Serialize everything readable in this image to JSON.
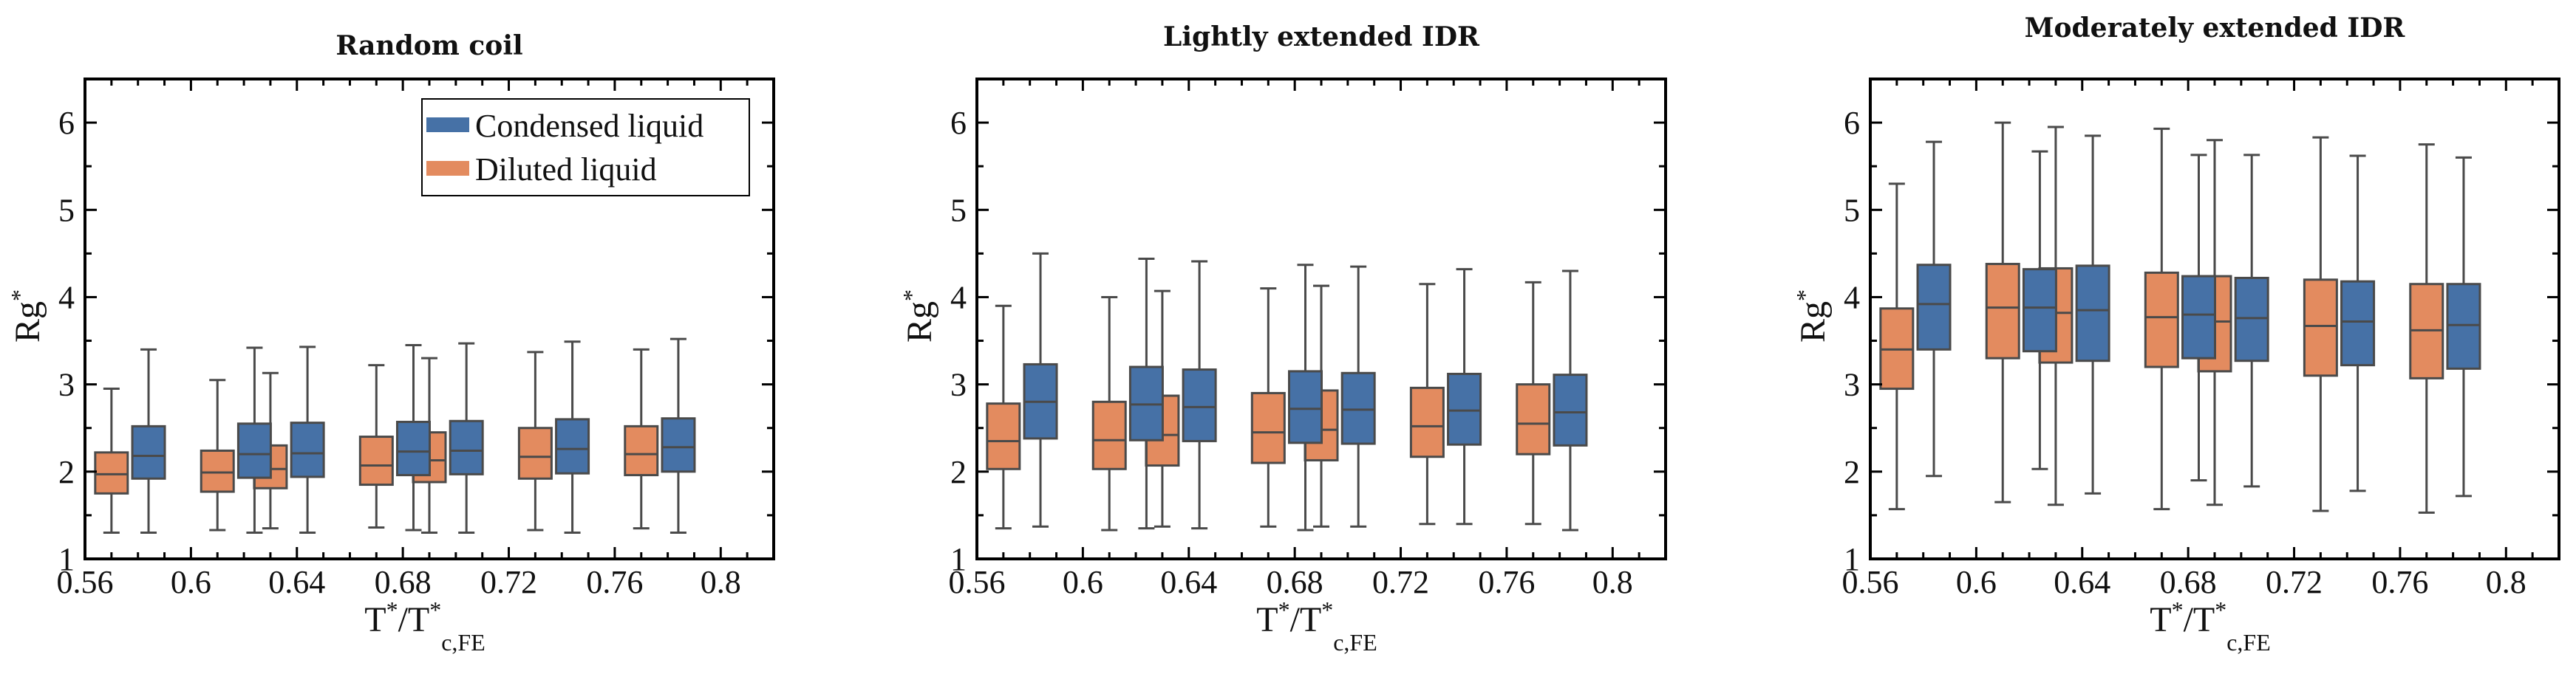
{
  "figure": {
    "ylabel": "Rg",
    "ylabel_sup": "*",
    "xlabel_T": "T",
    "xlabel_sup": "*",
    "xlabel_slash": "/T",
    "xlabel_sub": "c,FE"
  },
  "legend": {
    "condensed": "Condensed liquid",
    "diluted": "Diluted liquid"
  },
  "colors": {
    "condensed": "#4671a6",
    "diluted": "#e38b5f",
    "whisker": "#4a4a4a"
  },
  "chart_data": [
    {
      "type": "boxplot",
      "title": "Random coil",
      "xlim": [
        0.56,
        0.82
      ],
      "ylim": [
        1,
        6.5
      ],
      "xticks": [
        0.56,
        0.6,
        0.64,
        0.68,
        0.72,
        0.76,
        0.8
      ],
      "xtick_labels": [
        "0.56",
        "0.6",
        "0.64",
        "0.68",
        "0.72",
        "0.76",
        "0.8"
      ],
      "yticks": [
        1,
        2,
        3,
        4,
        5,
        6
      ],
      "ytick_labels": [
        "1",
        "2",
        "3",
        "4",
        "5",
        "6"
      ],
      "series": [
        {
          "name": "Diluted liquid",
          "x": [
            0.57,
            0.61,
            0.63,
            0.67,
            0.69,
            0.73,
            0.77
          ],
          "boxes": [
            {
              "min": 1.3,
              "q1": 1.75,
              "median": 1.97,
              "q3": 2.22,
              "max": 2.95
            },
            {
              "min": 1.33,
              "q1": 1.77,
              "median": 1.99,
              "q3": 2.24,
              "max": 3.05
            },
            {
              "min": 1.35,
              "q1": 1.81,
              "median": 2.03,
              "q3": 2.3,
              "max": 3.13
            },
            {
              "min": 1.36,
              "q1": 1.85,
              "median": 2.07,
              "q3": 2.4,
              "max": 3.22
            },
            {
              "min": 1.3,
              "q1": 1.88,
              "median": 2.13,
              "q3": 2.45,
              "max": 3.3
            },
            {
              "min": 1.33,
              "q1": 1.92,
              "median": 2.17,
              "q3": 2.5,
              "max": 3.37
            },
            {
              "min": 1.35,
              "q1": 1.96,
              "median": 2.2,
              "q3": 2.52,
              "max": 3.4
            }
          ]
        },
        {
          "name": "Condensed liquid",
          "x": [
            0.584,
            0.624,
            0.644,
            0.684,
            0.704,
            0.744,
            0.784
          ],
          "boxes": [
            {
              "min": 1.3,
              "q1": 1.92,
              "median": 2.18,
              "q3": 2.52,
              "max": 3.4
            },
            {
              "min": 1.3,
              "q1": 1.93,
              "median": 2.2,
              "q3": 2.55,
              "max": 3.42
            },
            {
              "min": 1.3,
              "q1": 1.94,
              "median": 2.21,
              "q3": 2.56,
              "max": 3.43
            },
            {
              "min": 1.33,
              "q1": 1.96,
              "median": 2.23,
              "q3": 2.57,
              "max": 3.45
            },
            {
              "min": 1.3,
              "q1": 1.97,
              "median": 2.24,
              "q3": 2.58,
              "max": 3.47
            },
            {
              "min": 1.3,
              "q1": 1.98,
              "median": 2.26,
              "q3": 2.6,
              "max": 3.49
            },
            {
              "min": 1.3,
              "q1": 2.0,
              "median": 2.28,
              "q3": 2.61,
              "max": 3.52
            }
          ]
        }
      ],
      "legend_position": "top-right"
    },
    {
      "type": "boxplot",
      "title": "Lightly extended IDR",
      "xlim": [
        0.56,
        0.82
      ],
      "ylim": [
        1,
        6.5
      ],
      "xticks": [
        0.56,
        0.6,
        0.64,
        0.68,
        0.72,
        0.76,
        0.8
      ],
      "xtick_labels": [
        "0.56",
        "0.6",
        "0.64",
        "0.68",
        "0.72",
        "0.76",
        "0.8"
      ],
      "yticks": [
        1,
        2,
        3,
        4,
        5,
        6
      ],
      "ytick_labels": [
        "1",
        "2",
        "3",
        "4",
        "5",
        "6"
      ],
      "series": [
        {
          "name": "Diluted liquid",
          "x": [
            0.57,
            0.61,
            0.63,
            0.67,
            0.69,
            0.73,
            0.77
          ],
          "boxes": [
            {
              "min": 1.35,
              "q1": 2.03,
              "median": 2.35,
              "q3": 2.78,
              "max": 3.9
            },
            {
              "min": 1.33,
              "q1": 2.03,
              "median": 2.36,
              "q3": 2.8,
              "max": 4.0
            },
            {
              "min": 1.37,
              "q1": 2.07,
              "median": 2.42,
              "q3": 2.87,
              "max": 4.07
            },
            {
              "min": 1.37,
              "q1": 2.1,
              "median": 2.45,
              "q3": 2.9,
              "max": 4.1
            },
            {
              "min": 1.37,
              "q1": 2.13,
              "median": 2.48,
              "q3": 2.93,
              "max": 4.13
            },
            {
              "min": 1.4,
              "q1": 2.17,
              "median": 2.52,
              "q3": 2.96,
              "max": 4.15
            },
            {
              "min": 1.4,
              "q1": 2.2,
              "median": 2.55,
              "q3": 3.0,
              "max": 4.17
            }
          ]
        },
        {
          "name": "Condensed liquid",
          "x": [
            0.584,
            0.624,
            0.644,
            0.684,
            0.704,
            0.744,
            0.784
          ],
          "boxes": [
            {
              "min": 1.37,
              "q1": 2.38,
              "median": 2.8,
              "q3": 3.23,
              "max": 4.5
            },
            {
              "min": 1.35,
              "q1": 2.36,
              "median": 2.77,
              "q3": 3.2,
              "max": 4.44
            },
            {
              "min": 1.35,
              "q1": 2.35,
              "median": 2.74,
              "q3": 3.17,
              "max": 4.41
            },
            {
              "min": 1.33,
              "q1": 2.33,
              "median": 2.72,
              "q3": 3.15,
              "max": 4.37
            },
            {
              "min": 1.37,
              "q1": 2.32,
              "median": 2.71,
              "q3": 3.13,
              "max": 4.35
            },
            {
              "min": 1.4,
              "q1": 2.31,
              "median": 2.7,
              "q3": 3.12,
              "max": 4.32
            },
            {
              "min": 1.33,
              "q1": 2.3,
              "median": 2.68,
              "q3": 3.11,
              "max": 4.3
            }
          ]
        }
      ]
    },
    {
      "type": "boxplot",
      "title": "Moderately extended IDR",
      "xlim": [
        0.56,
        0.82
      ],
      "ylim": [
        1,
        6.5
      ],
      "xticks": [
        0.56,
        0.6,
        0.64,
        0.68,
        0.72,
        0.76,
        0.8
      ],
      "xtick_labels": [
        "0.56",
        "0.6",
        "0.64",
        "0.68",
        "0.72",
        "0.76",
        "0.8"
      ],
      "yticks": [
        1,
        2,
        3,
        4,
        5,
        6
      ],
      "ytick_labels": [
        "1",
        "2",
        "3",
        "4",
        "5",
        "6"
      ],
      "series": [
        {
          "name": "Diluted liquid",
          "x": [
            0.57,
            0.61,
            0.63,
            0.67,
            0.69,
            0.73,
            0.77
          ],
          "boxes": [
            {
              "min": 1.57,
              "q1": 2.95,
              "median": 3.4,
              "q3": 3.87,
              "max": 5.3
            },
            {
              "min": 1.65,
              "q1": 3.3,
              "median": 3.88,
              "q3": 4.38,
              "max": 6.0
            },
            {
              "min": 1.62,
              "q1": 3.25,
              "median": 3.82,
              "q3": 4.33,
              "max": 5.95
            },
            {
              "min": 1.57,
              "q1": 3.2,
              "median": 3.77,
              "q3": 4.28,
              "max": 5.93
            },
            {
              "min": 1.62,
              "q1": 3.15,
              "median": 3.72,
              "q3": 4.24,
              "max": 5.8
            },
            {
              "min": 1.55,
              "q1": 3.1,
              "median": 3.67,
              "q3": 4.2,
              "max": 5.83
            },
            {
              "min": 1.53,
              "q1": 3.07,
              "median": 3.62,
              "q3": 4.15,
              "max": 5.75
            }
          ]
        },
        {
          "name": "Condensed liquid",
          "x": [
            0.584,
            0.624,
            0.644,
            0.684,
            0.704,
            0.744,
            0.784
          ],
          "boxes": [
            {
              "min": 1.95,
              "q1": 3.4,
              "median": 3.92,
              "q3": 4.37,
              "max": 5.78
            },
            {
              "min": 2.03,
              "q1": 3.38,
              "median": 3.88,
              "q3": 4.32,
              "max": 5.67
            },
            {
              "min": 1.75,
              "q1": 3.27,
              "median": 3.85,
              "q3": 4.36,
              "max": 5.85
            },
            {
              "min": 1.9,
              "q1": 3.3,
              "median": 3.8,
              "q3": 4.24,
              "max": 5.63
            },
            {
              "min": 1.83,
              "q1": 3.27,
              "median": 3.76,
              "q3": 4.22,
              "max": 5.63
            },
            {
              "min": 1.78,
              "q1": 3.22,
              "median": 3.72,
              "q3": 4.18,
              "max": 5.62
            },
            {
              "min": 1.72,
              "q1": 3.18,
              "median": 3.68,
              "q3": 4.15,
              "max": 5.6
            }
          ]
        }
      ]
    }
  ]
}
